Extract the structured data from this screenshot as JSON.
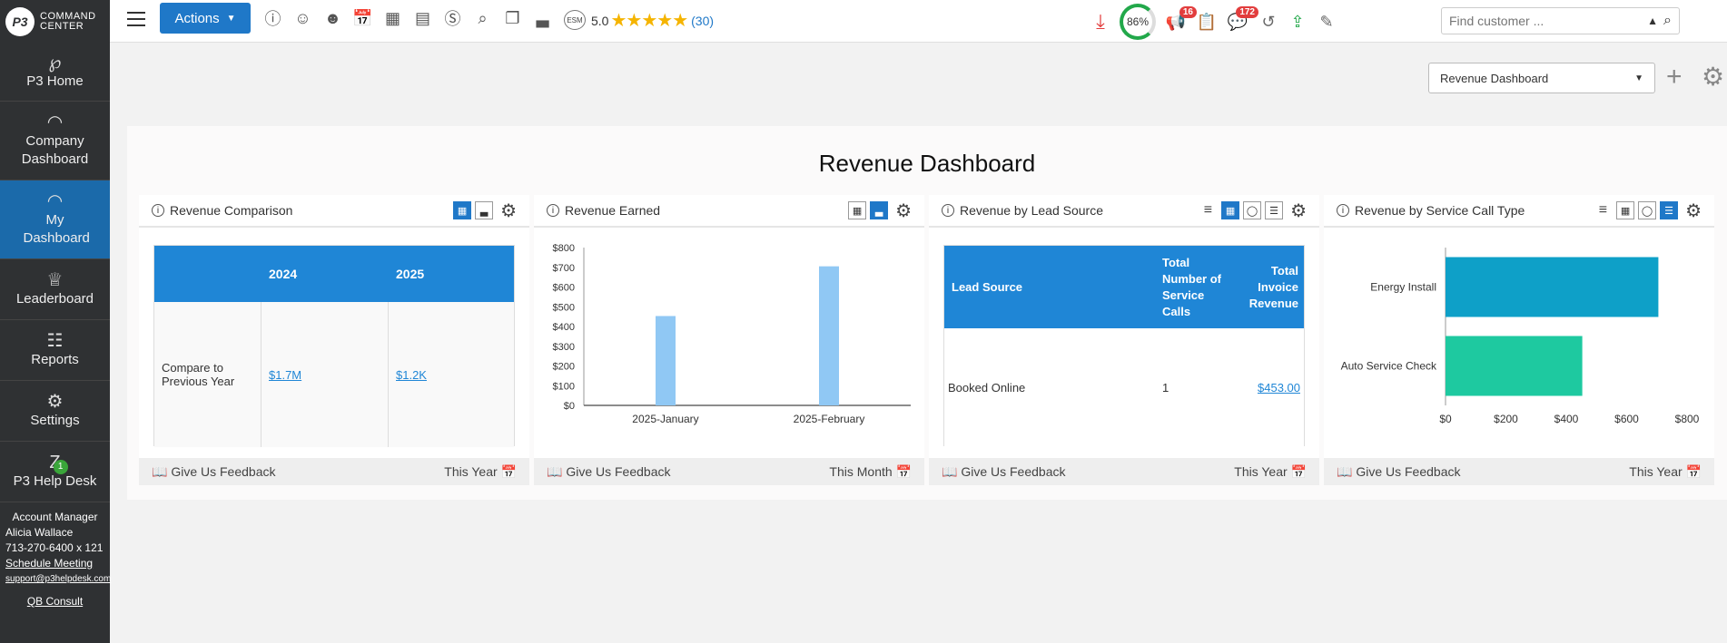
{
  "app": {
    "logo_badge": "P3",
    "logo_line1": "COMMAND",
    "logo_line2": "CENTER"
  },
  "sidebar": {
    "items": [
      {
        "label": "P3 Home",
        "icon": "p3-icon"
      },
      {
        "label": "Company Dashboard",
        "icon": "gauge-icon"
      },
      {
        "label": "My Dashboard",
        "icon": "gauge-icon",
        "active": true
      },
      {
        "label": "Leaderboard",
        "icon": "trophy-icon"
      },
      {
        "label": "Reports",
        "icon": "report-icon"
      },
      {
        "label": "Settings",
        "icon": "gear-icon"
      },
      {
        "label": "P3 Help Desk",
        "icon": "zendesk-icon",
        "badge": "1"
      }
    ],
    "account": {
      "title": "Account Manager",
      "name": "Alicia Wallace",
      "phone": "713-270-6400 x 121",
      "schedule": "Schedule Meeting",
      "email": "support@p3helpdesk.com",
      "qb": "QB Consult"
    }
  },
  "topbar": {
    "actions_label": "Actions",
    "esm_label": "ESM",
    "rating": "5.0",
    "rating_count": "(30)",
    "progress_percent": "86%",
    "notif_badge": "16",
    "messages_badge": "172",
    "search_placeholder": "Find customer ..."
  },
  "dashboard_select": {
    "selected": "Revenue Dashboard"
  },
  "dashboard": {
    "title": "Revenue Dashboard",
    "feedback_label": "Give Us Feedback",
    "widgets": {
      "comparison": {
        "title": "Revenue Comparison",
        "col1": "2024",
        "col2": "2025",
        "row_label": "Compare to Previous Year",
        "val1": "$1.7M",
        "val2": "$1.2K",
        "period": "This Year"
      },
      "earned": {
        "title": "Revenue Earned",
        "period": "This Month"
      },
      "lead": {
        "title": "Revenue by Lead Source",
        "h1": "Lead Source",
        "h2": "Total Number of Service Calls",
        "h3": "Total Invoice Revenue",
        "r_source": "Booked Online",
        "r_calls": "1",
        "r_revenue": "$453.00",
        "period": "This Year"
      },
      "service": {
        "title": "Revenue by Service Call Type",
        "period": "This Year"
      }
    }
  },
  "chart_data": [
    {
      "type": "bar",
      "categories": [
        "2025-January",
        "2025-February"
      ],
      "values": [
        453,
        705
      ],
      "title": "",
      "xlabel": "",
      "ylabel": "",
      "ylim": [
        0,
        800
      ],
      "yticks": [
        "$0",
        "$100",
        "$200",
        "$300",
        "$400",
        "$500",
        "$600",
        "$700",
        "$800"
      ],
      "color": "#90c8f4"
    },
    {
      "type": "bar",
      "orientation": "horizontal",
      "categories": [
        "Energy Install",
        "Auto Service Check"
      ],
      "values": [
        705,
        453
      ],
      "colors": [
        "#0ea0c8",
        "#1ec9a0"
      ],
      "title": "",
      "xlim": [
        0,
        800
      ],
      "xticks": [
        "$0",
        "$200",
        "$400",
        "$600",
        "$800"
      ]
    }
  ]
}
